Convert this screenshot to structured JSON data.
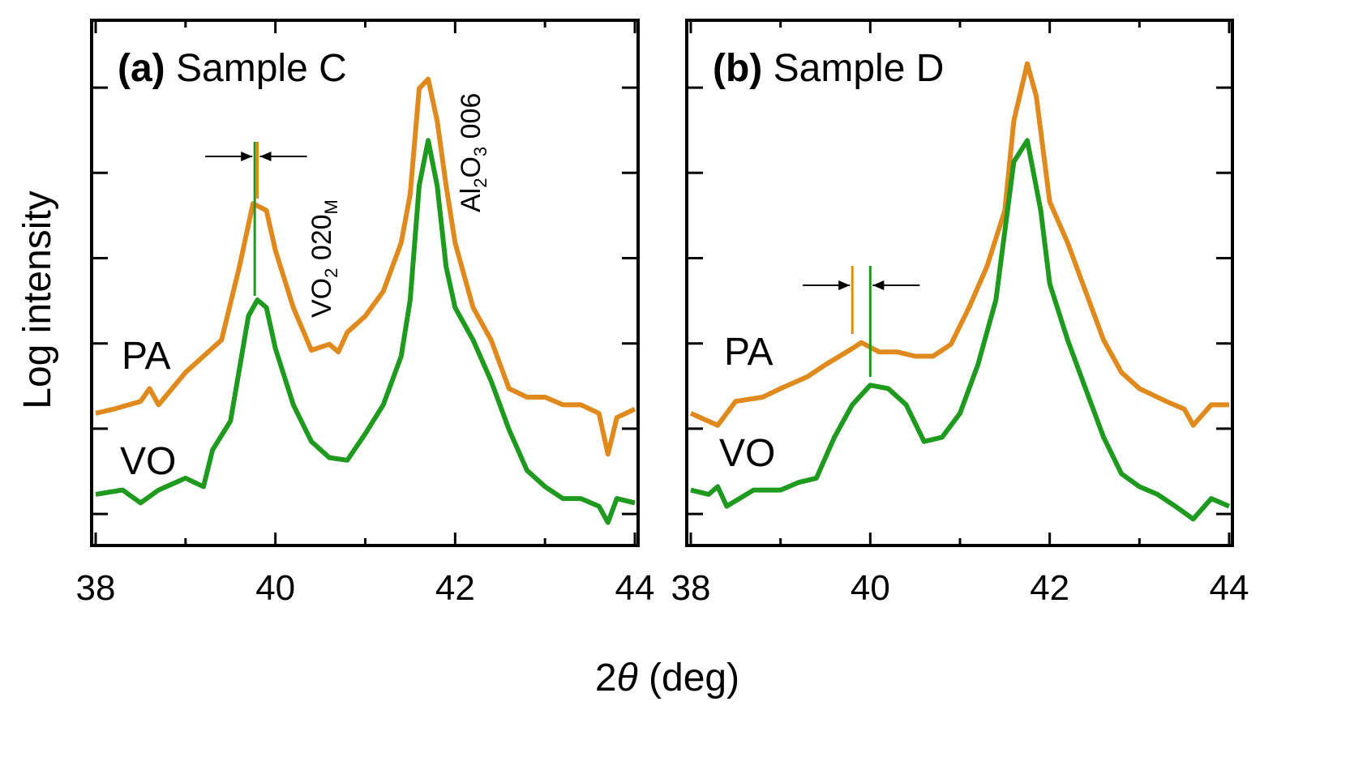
{
  "colors": {
    "PA": "#E08A1E",
    "VO": "#1E9A1E"
  },
  "xlabel_main": "2",
  "xlabel_theta": "θ",
  "xlabel_unit": " (deg)",
  "ylabel": "Log intensity",
  "chart_data": [
    {
      "type": "line",
      "panel": "(a)",
      "title": "Sample C",
      "xlim": [
        38,
        44
      ],
      "xticks": [
        38,
        40,
        42,
        44
      ],
      "ylim": [
        -0.37,
        5.79
      ],
      "yticks_unlabeled": [
        0,
        1,
        2,
        3,
        4,
        5
      ],
      "annotations": {
        "peak1": {
          "base": "VO",
          "sub1": "2",
          "mid": " 020",
          "sub2": "M"
        },
        "peak2": {
          "base": "Al",
          "sub1": "2",
          "mid": "O",
          "sub2": "3",
          "tail": " 006"
        },
        "shift_lines": {
          "PA": 39.8,
          "VO": 39.77
        }
      },
      "series": [
        {
          "name": "PA",
          "x": [
            38,
            38.2,
            38.5,
            38.6,
            38.7,
            39,
            39.2,
            39.4,
            39.6,
            39.75,
            39.9,
            40,
            40.2,
            40.4,
            40.6,
            40.7,
            40.8,
            41,
            41.2,
            41.4,
            41.5,
            41.6,
            41.7,
            41.8,
            41.9,
            42,
            42.2,
            42.4,
            42.6,
            42.8,
            43,
            43.2,
            43.4,
            43.6,
            43.7,
            43.8,
            44
          ],
          "y": [
            1.18,
            1.23,
            1.32,
            1.47,
            1.28,
            1.66,
            1.85,
            2.04,
            2.9,
            3.64,
            3.56,
            3.09,
            2.42,
            1.92,
            1.99,
            1.9,
            2.13,
            2.32,
            2.61,
            3.18,
            3.75,
            4.99,
            5.1,
            4.61,
            3.85,
            3.18,
            2.42,
            2.04,
            1.47,
            1.37,
            1.37,
            1.28,
            1.28,
            1.18,
            0.7,
            1.13,
            1.23
          ]
        },
        {
          "name": "VO",
          "x": [
            38,
            38.3,
            38.5,
            38.7,
            39,
            39.2,
            39.3,
            39.5,
            39.7,
            39.8,
            39.9,
            40,
            40.2,
            40.4,
            40.6,
            40.8,
            41,
            41.2,
            41.4,
            41.5,
            41.6,
            41.7,
            41.8,
            41.9,
            42,
            42.2,
            42.4,
            42.6,
            42.8,
            43,
            43.2,
            43.4,
            43.6,
            43.7,
            43.8,
            44
          ],
          "y": [
            0.23,
            0.28,
            0.13,
            0.28,
            0.42,
            0.32,
            0.75,
            1.09,
            2.32,
            2.51,
            2.42,
            1.94,
            1.28,
            0.85,
            0.66,
            0.63,
            0.94,
            1.28,
            1.85,
            2.51,
            3.85,
            4.38,
            3.85,
            2.9,
            2.42,
            2.04,
            1.56,
            0.99,
            0.51,
            0.32,
            0.18,
            0.18,
            0.09,
            -0.1,
            0.18,
            0.13
          ]
        }
      ]
    },
    {
      "type": "line",
      "panel": "(b)",
      "title": "Sample D",
      "xlim": [
        38,
        44
      ],
      "xticks": [
        38,
        40,
        42,
        44
      ],
      "ylim": [
        -0.37,
        5.79
      ],
      "yticks_unlabeled": [
        0,
        1,
        2,
        3,
        4,
        5
      ],
      "annotations": {
        "shift_lines": {
          "PA": 39.8,
          "VO": 40.0
        }
      },
      "series": [
        {
          "name": "PA",
          "x": [
            38,
            38.3,
            38.5,
            38.8,
            39,
            39.3,
            39.5,
            39.8,
            39.9,
            40.1,
            40.3,
            40.5,
            40.7,
            40.9,
            41.1,
            41.3,
            41.5,
            41.6,
            41.75,
            41.85,
            42,
            42.2,
            42.4,
            42.6,
            42.8,
            43,
            43.3,
            43.5,
            43.6,
            43.8,
            44
          ],
          "y": [
            1.18,
            1.04,
            1.32,
            1.37,
            1.47,
            1.61,
            1.75,
            1.94,
            2.01,
            1.9,
            1.9,
            1.85,
            1.85,
            1.99,
            2.42,
            2.9,
            3.56,
            4.61,
            5.28,
            4.9,
            3.66,
            3.18,
            2.61,
            2.04,
            1.66,
            1.47,
            1.32,
            1.23,
            1.04,
            1.28,
            1.28
          ]
        },
        {
          "name": "VO",
          "x": [
            38,
            38.2,
            38.3,
            38.4,
            38.7,
            39,
            39.2,
            39.4,
            39.6,
            39.8,
            40,
            40.2,
            40.4,
            40.6,
            40.8,
            41,
            41.2,
            41.4,
            41.6,
            41.75,
            41.9,
            42,
            42.2,
            42.4,
            42.6,
            42.8,
            43,
            43.2,
            43.4,
            43.6,
            43.8,
            44
          ],
          "y": [
            0.28,
            0.23,
            0.32,
            0.09,
            0.28,
            0.28,
            0.37,
            0.42,
            0.9,
            1.28,
            1.51,
            1.47,
            1.28,
            0.85,
            0.9,
            1.18,
            1.75,
            2.51,
            4.13,
            4.38,
            3.56,
            2.7,
            2.04,
            1.47,
            0.9,
            0.47,
            0.32,
            0.23,
            0.09,
            -0.06,
            0.18,
            0.09
          ]
        }
      ]
    }
  ]
}
